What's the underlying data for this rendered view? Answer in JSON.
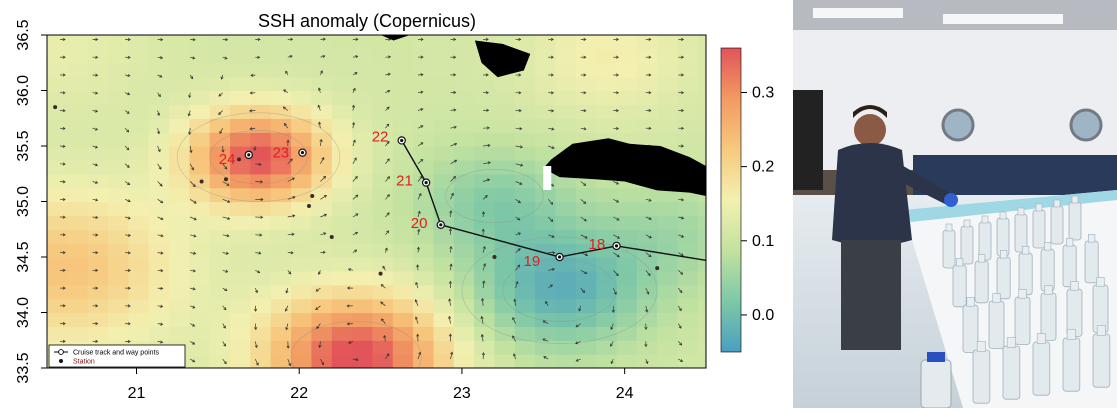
{
  "chart_data": {
    "type": "heatmap",
    "title": "SSH anomaly (Copernicus)",
    "xlabel": "",
    "ylabel": "",
    "xlim": [
      20.45,
      24.5
    ],
    "ylim": [
      33.5,
      36.5
    ],
    "x_ticks": [
      21,
      22,
      23,
      24
    ],
    "y_ticks": [
      33.5,
      34.0,
      34.5,
      35.0,
      35.5,
      36.0,
      36.5
    ],
    "y_tick_labels": [
      "33.5",
      "34.0",
      "34.5",
      "35.0",
      "35.5",
      "36.0",
      "36.5"
    ],
    "colorbar": {
      "range": [
        -0.05,
        0.36
      ],
      "ticks": [
        0.0,
        0.1,
        0.2,
        0.3
      ],
      "tick_labels": [
        "0.0",
        "0.1",
        "0.2",
        "0.3"
      ],
      "stops": [
        "#4a9fc2",
        "#7ec8a6",
        "#c2e2a0",
        "#f3f0b0",
        "#f7c97e",
        "#f29a62",
        "#e2545a"
      ]
    },
    "field_blobs": [
      {
        "lon": 21.75,
        "lat": 35.4,
        "amp": 0.25,
        "sigma": 0.42
      },
      {
        "lon": 22.35,
        "lat": 33.6,
        "amp": 0.26,
        "sigma": 0.55
      },
      {
        "lon": 20.55,
        "lat": 34.4,
        "amp": 0.12,
        "sigma": 0.7
      },
      {
        "lon": 20.5,
        "lat": 36.4,
        "amp": 0.03,
        "sigma": 0.6
      },
      {
        "lon": 23.6,
        "lat": 34.2,
        "amp": -0.13,
        "sigma": 0.55
      },
      {
        "lon": 23.2,
        "lat": 35.0,
        "amp": -0.08,
        "sigma": 0.5
      },
      {
        "lon": 24.3,
        "lat": 34.7,
        "amp": -0.05,
        "sigma": 0.5
      },
      {
        "lon": 23.9,
        "lat": 36.3,
        "amp": 0.05,
        "sigma": 0.5
      }
    ],
    "field_base": 0.11,
    "eddies": [
      {
        "lon": 21.75,
        "lat": 35.4,
        "sign": 1,
        "r": 0.55
      },
      {
        "lon": 22.35,
        "lat": 33.6,
        "sign": 1,
        "r": 0.6
      },
      {
        "lon": 23.6,
        "lat": 34.2,
        "sign": -1,
        "r": 0.55
      },
      {
        "lon": 23.2,
        "lat": 35.05,
        "sign": -1,
        "r": 0.45
      }
    ],
    "cruise_track": [
      {
        "lon": 24.5,
        "lat": 34.47
      },
      {
        "lon": 23.95,
        "lat": 34.6,
        "label": "18"
      },
      {
        "lon": 23.6,
        "lat": 34.5,
        "label": "19"
      },
      {
        "lon": 22.87,
        "lat": 34.79,
        "label": "20"
      },
      {
        "lon": 22.78,
        "lat": 35.17,
        "label": "21"
      },
      {
        "lon": 22.63,
        "lat": 35.55,
        "label": "22"
      }
    ],
    "extra_waypoints": [
      {
        "lon": 22.02,
        "lat": 35.44,
        "label": "23"
      },
      {
        "lon": 21.69,
        "lat": 35.42,
        "label": "24"
      }
    ],
    "stations": [
      {
        "lon": 21.4,
        "lat": 35.18
      },
      {
        "lon": 21.55,
        "lat": 35.2
      },
      {
        "lon": 21.63,
        "lat": 35.38
      },
      {
        "lon": 22.08,
        "lat": 35.05
      },
      {
        "lon": 22.06,
        "lat": 34.96
      },
      {
        "lon": 22.2,
        "lat": 34.68
      },
      {
        "lon": 22.5,
        "lat": 34.35
      },
      {
        "lon": 23.2,
        "lat": 34.5
      },
      {
        "lon": 24.2,
        "lat": 34.4
      },
      {
        "lon": 20.5,
        "lat": 35.85
      }
    ],
    "land_polygons": [
      [
        [
          22.5,
          36.5
        ],
        [
          22.58,
          36.45
        ],
        [
          22.68,
          36.5
        ]
      ],
      [
        [
          23.08,
          36.45
        ],
        [
          23.25,
          36.42
        ],
        [
          23.42,
          36.33
        ],
        [
          23.38,
          36.18
        ],
        [
          23.22,
          36.12
        ],
        [
          23.12,
          36.25
        ]
      ],
      [
        [
          23.55,
          35.38
        ],
        [
          23.68,
          35.52
        ],
        [
          23.9,
          35.57
        ],
        [
          24.03,
          35.52
        ],
        [
          24.22,
          35.5
        ],
        [
          24.4,
          35.4
        ],
        [
          24.5,
          35.32
        ],
        [
          24.5,
          35.05
        ],
        [
          24.4,
          35.08
        ],
        [
          24.2,
          35.1
        ],
        [
          24.0,
          35.18
        ],
        [
          23.82,
          35.2
        ],
        [
          23.6,
          35.22
        ],
        [
          23.5,
          35.3
        ]
      ]
    ],
    "legend": {
      "position": "bottom-left",
      "entries": [
        {
          "label": "Cruise track and way points",
          "marker": "line-circle",
          "color": "#000000"
        },
        {
          "label": "Station",
          "marker": "dot",
          "color": "#7a1414"
        }
      ]
    },
    "colors": {
      "label_red": "#e02020",
      "track": "#111111"
    }
  },
  "photo": {
    "alt": "Scientist arranging sample bottles in ship laboratory"
  }
}
